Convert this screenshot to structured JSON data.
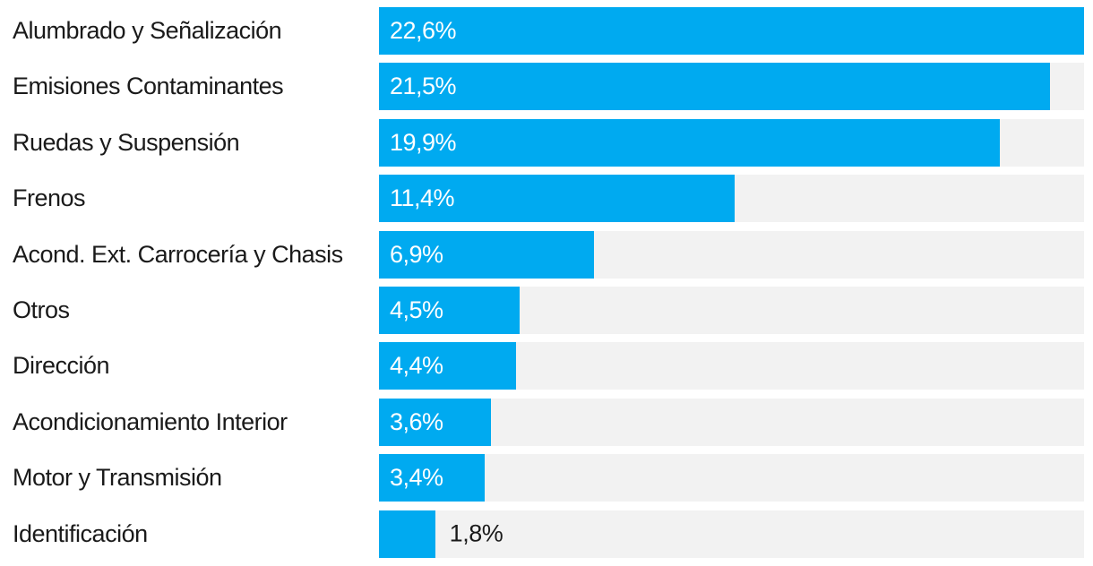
{
  "chart_data": {
    "type": "bar",
    "orientation": "horizontal",
    "categories": [
      "Alumbrado y Señalización",
      "Emisiones Contaminantes",
      "Ruedas y Suspensión",
      "Frenos",
      "Acond. Ext. Carrocería y Chasis",
      "Otros",
      "Dirección",
      "Acondicionamiento Interior",
      "Motor y Transmisión",
      "Identificación"
    ],
    "values": [
      22.6,
      21.5,
      19.9,
      11.4,
      6.9,
      4.5,
      4.4,
      3.6,
      3.4,
      1.8
    ],
    "value_labels": [
      "22,6%",
      "21,5%",
      "19,9%",
      "11,4%",
      "6,9%",
      "4,5%",
      "4,4%",
      "3,6%",
      "3,4%",
      "1,8%"
    ],
    "unit": "%",
    "decimal_separator": ",",
    "xlim": [
      0,
      22.6
    ],
    "grid": false,
    "legend": false,
    "value_label_inside": [
      true,
      true,
      true,
      true,
      true,
      true,
      true,
      true,
      true,
      false
    ],
    "bar_color": "#00aaf0",
    "track_color": "#f2f2f2",
    "label_color": "#1a1a1a",
    "value_text_color_inside": "#ffffff",
    "value_text_color_outside": "#1a1a1a"
  }
}
